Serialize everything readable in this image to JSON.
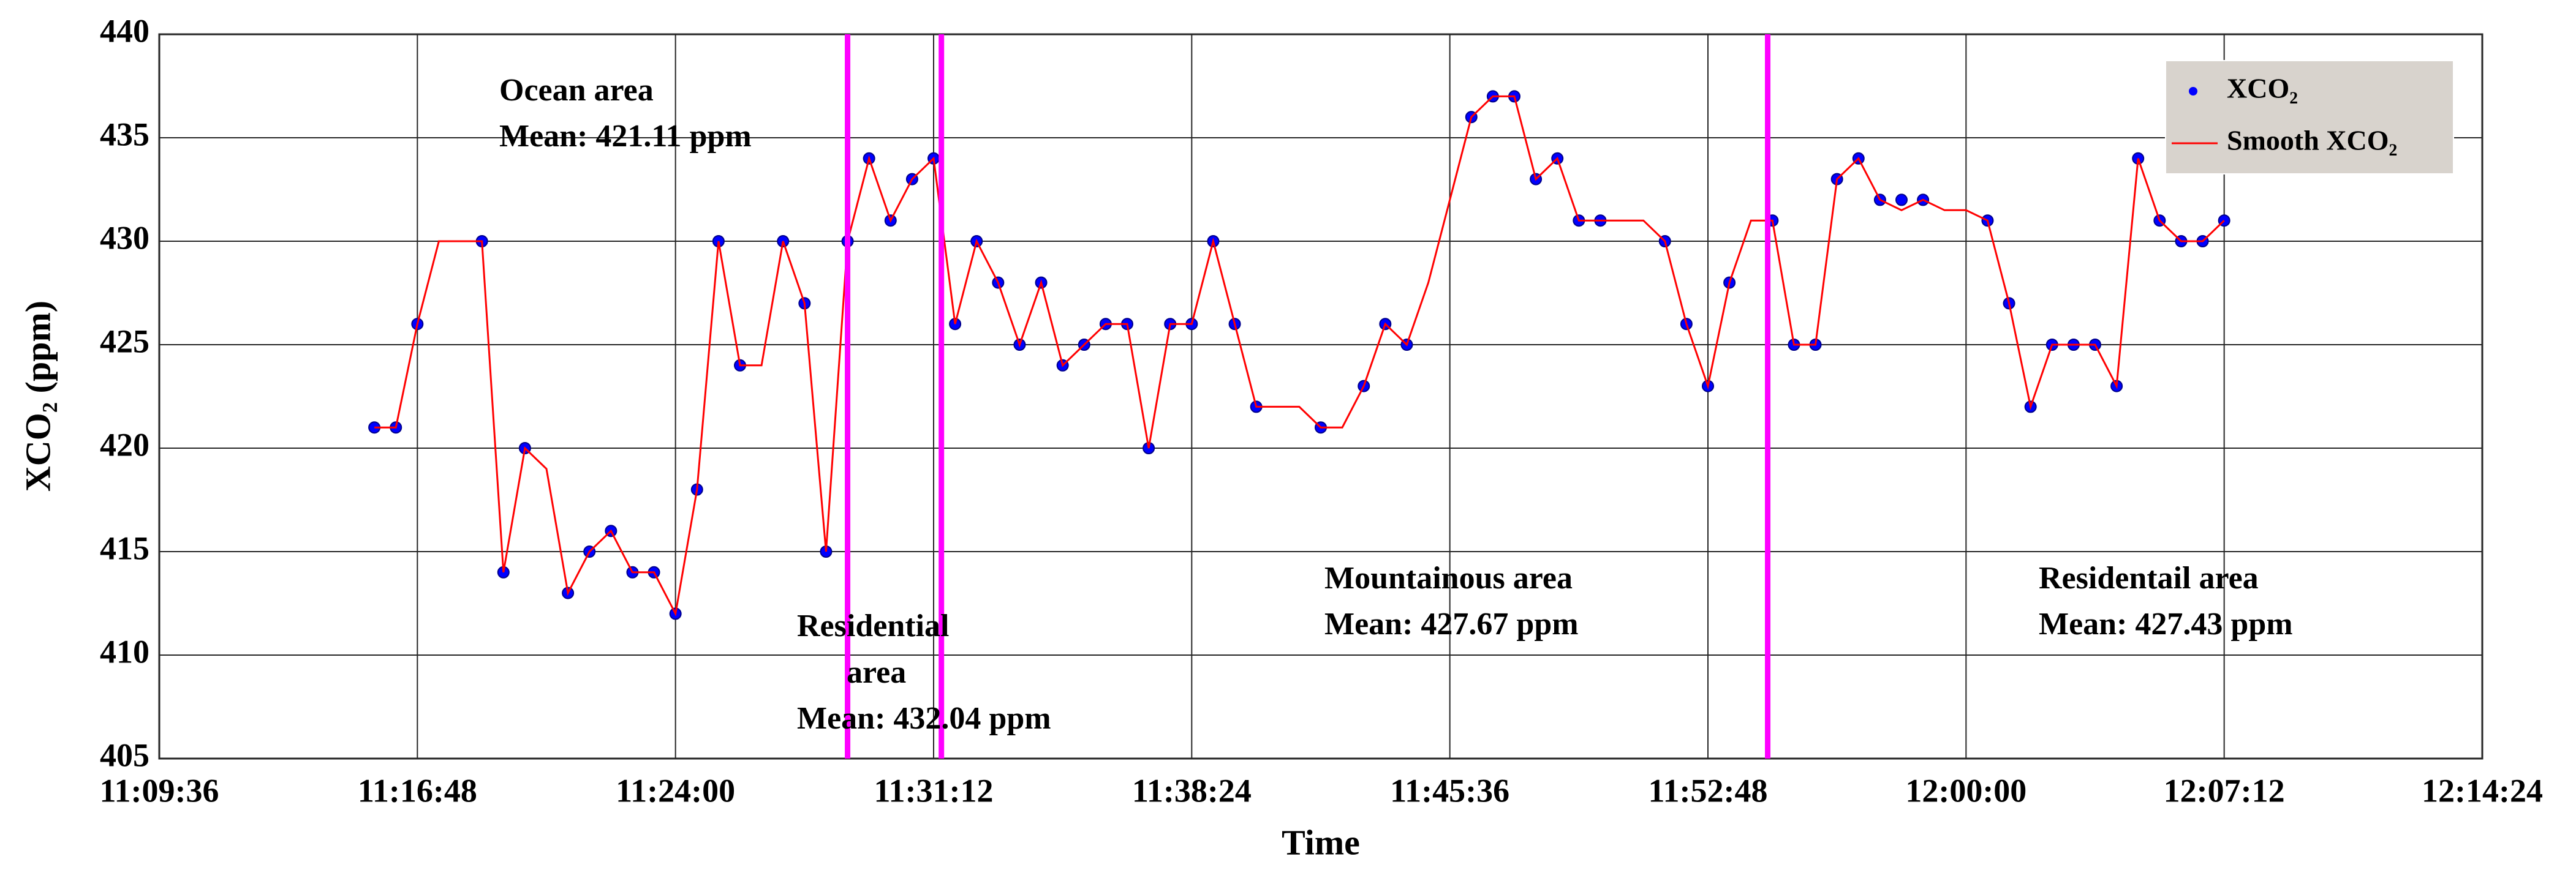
{
  "chart_data": {
    "type": "scatter",
    "xlabel": "Time",
    "ylabel": "XCO₂ (ppm)",
    "x": [
      "11:15:36",
      "11:16:12",
      "11:16:48",
      "11:17:24",
      "11:18:00",
      "11:18:36",
      "11:19:12",
      "11:19:48",
      "11:20:24",
      "11:21:00",
      "11:21:36",
      "11:22:12",
      "11:22:48",
      "11:23:24",
      "11:24:00",
      "11:24:36",
      "11:25:12",
      "11:25:48",
      "11:26:24",
      "11:27:00",
      "11:27:36",
      "11:28:12",
      "11:28:48",
      "11:29:24",
      "11:30:00",
      "11:30:36",
      "11:31:12",
      "11:31:48",
      "11:32:24",
      "11:33:00",
      "11:33:36",
      "11:34:12",
      "11:34:48",
      "11:35:24",
      "11:36:00",
      "11:36:36",
      "11:37:12",
      "11:37:48",
      "11:38:24",
      "11:39:00",
      "11:39:36",
      "11:40:12",
      "11:40:48",
      "11:41:24",
      "11:42:00",
      "11:42:36",
      "11:43:12",
      "11:43:48",
      "11:44:24",
      "11:45:00",
      "11:45:36",
      "11:46:12",
      "11:46:48",
      "11:47:24",
      "11:48:00",
      "11:48:36",
      "11:49:12",
      "11:49:48",
      "11:50:24",
      "11:51:00",
      "11:51:36",
      "11:52:12",
      "11:52:48",
      "11:53:24",
      "11:54:00",
      "11:54:36",
      "11:55:12",
      "11:55:48",
      "11:56:24",
      "11:57:00",
      "11:57:36",
      "11:58:12",
      "11:58:48",
      "11:59:24",
      "12:00:00",
      "12:00:36",
      "12:01:12",
      "12:01:48",
      "12:02:24",
      "12:03:00",
      "12:03:36",
      "12:04:12",
      "12:04:48",
      "12:05:24",
      "12:06:00",
      "12:06:36",
      "12:07:12"
    ],
    "series": [
      {
        "name": "XCO₂",
        "type": "scatter",
        "color": "#0000ff",
        "values": [
          421,
          421,
          426,
          null,
          null,
          430,
          414,
          420,
          null,
          413,
          415,
          416,
          414,
          414,
          412,
          418,
          430,
          424,
          null,
          430,
          427,
          415,
          430,
          434,
          431,
          433,
          434,
          426,
          430,
          428,
          425,
          428,
          424,
          425,
          426,
          426,
          420,
          426,
          426,
          430,
          426,
          422,
          null,
          null,
          421,
          null,
          423,
          426,
          425,
          null,
          null,
          436,
          437,
          437,
          433,
          434,
          431,
          431,
          null,
          null,
          430,
          426,
          423,
          428,
          null,
          431,
          425,
          425,
          433,
          434,
          432,
          432,
          432,
          null,
          null,
          431,
          427,
          422,
          425,
          425,
          425,
          423,
          434,
          431,
          430,
          430,
          431
        ]
      },
      {
        "name": "Smooth XCO₂",
        "type": "line",
        "color": "#ff0000",
        "values": [
          421,
          421,
          426,
          430,
          430,
          430,
          414,
          420,
          419,
          413,
          415,
          416,
          414,
          414,
          412,
          418,
          430,
          424,
          424,
          430,
          427,
          415,
          430,
          434,
          431,
          433,
          434,
          426,
          430,
          428,
          425,
          428,
          424,
          425,
          426,
          426,
          420,
          426,
          426,
          430,
          426,
          422,
          422,
          422,
          421,
          421,
          423,
          426,
          425,
          428,
          432,
          436,
          437,
          437,
          433,
          434,
          431,
          431,
          431,
          431,
          430,
          426,
          423,
          428,
          431,
          431,
          425,
          425,
          433,
          434,
          432,
          431.5,
          432,
          431.5,
          431.5,
          431,
          427,
          422,
          425,
          425,
          425,
          423,
          434,
          431,
          430,
          430,
          431
        ]
      }
    ],
    "xlim": [
      "11:09:36",
      "12:14:24"
    ],
    "xticks": [
      "11:09:36",
      "11:16:48",
      "11:24:00",
      "11:31:12",
      "11:38:24",
      "11:45:36",
      "11:52:48",
      "12:00:00",
      "12:07:12",
      "12:14:24"
    ],
    "ylim": [
      405,
      440
    ],
    "yticks": [
      405,
      410,
      415,
      420,
      425,
      430,
      435,
      440
    ],
    "grid": true,
    "legend": "northeast",
    "vlines": [
      "11:28:48",
      "11:31:25",
      "11:54:28"
    ],
    "vline_color": "#ff00ff",
    "annotations": [
      {
        "lines": [
          "Ocean area",
          "Mean: 421.11 ppm"
        ]
      },
      {
        "lines": [
          "Residential",
          "area",
          "Mean: 432.04 ppm"
        ]
      },
      {
        "lines": [
          "Mountainous area",
          "Mean: 427.67 ppm"
        ]
      },
      {
        "lines": [
          "Residentail area",
          "Mean: 427.43 ppm"
        ]
      }
    ]
  }
}
